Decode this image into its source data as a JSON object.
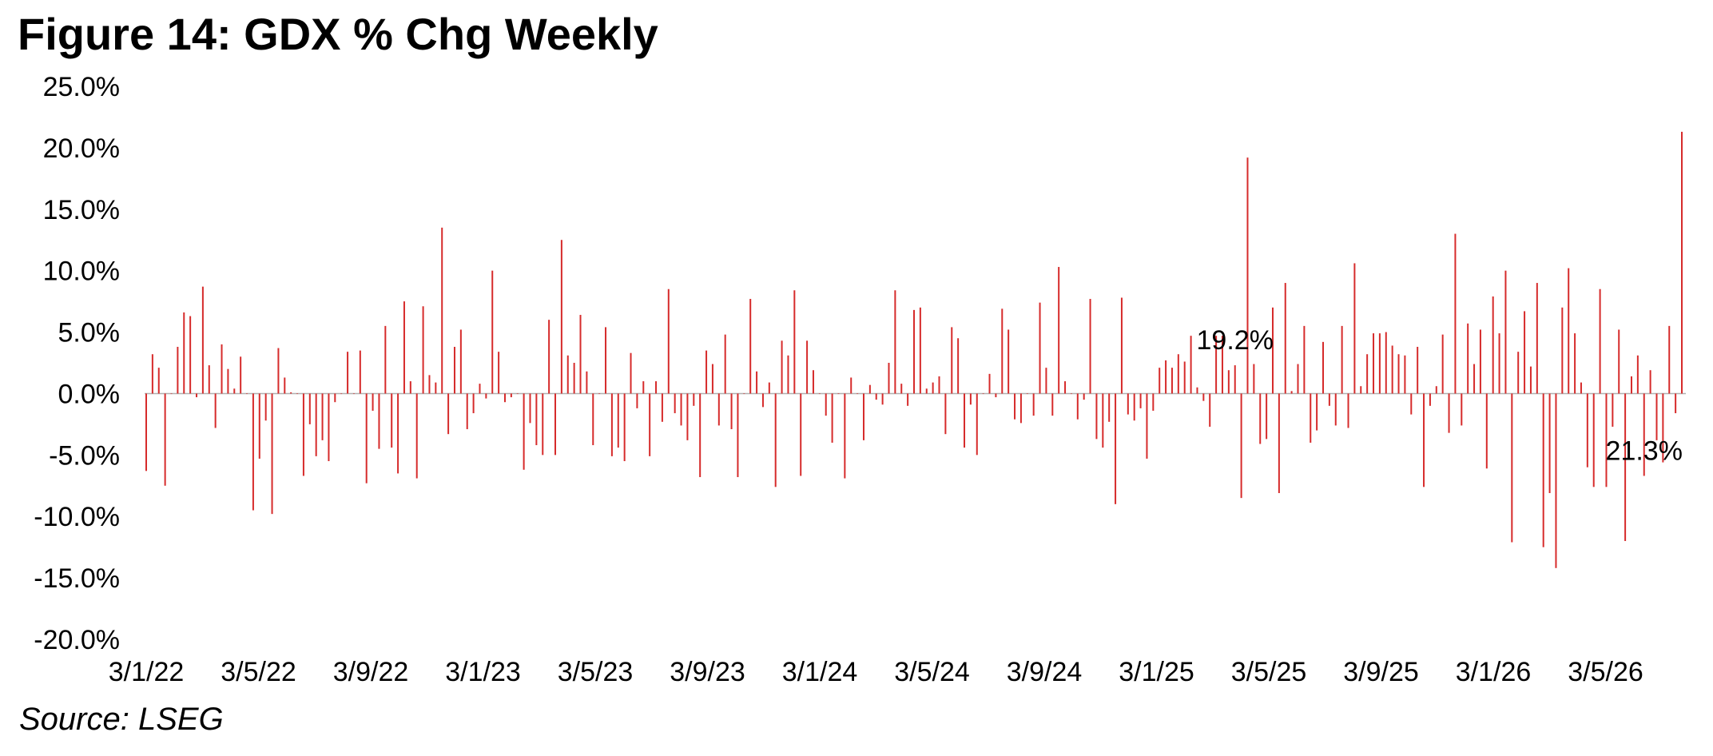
{
  "figure": {
    "title": "Figure 14: GDX % Chg Weekly",
    "source": "Source: LSEG",
    "colors": {
      "bar": "#d62b2b",
      "axis": "#b0b0b0",
      "text": "#000000"
    }
  },
  "chart_data": {
    "type": "bar",
    "series": [
      {
        "values": [
          -6.3,
          3.2,
          2.1,
          -7.5,
          0,
          3.8,
          6.6,
          6.3,
          -0.3,
          8.7,
          2.3,
          -2.8,
          4.0,
          2.0,
          0.4,
          3.0,
          0,
          -9.5,
          -5.3,
          -2.2,
          -9.8,
          3.7,
          1.3,
          0.1,
          0,
          -6.7,
          -2.5,
          -5.1,
          -3.8,
          -5.5,
          -0.7,
          0,
          3.4,
          0,
          3.5,
          -7.3,
          -1.4,
          -4.5,
          5.5,
          -4.4,
          -6.5,
          7.5,
          1.0,
          -6.9,
          7.1,
          1.5,
          0.9,
          13.5,
          -3.3,
          3.8,
          5.2,
          -2.9,
          -1.6,
          0.8,
          -0.4,
          10.0,
          3.4,
          -0.7,
          -0.3,
          0,
          -6.2,
          -2.4,
          -4.2,
          -5.0,
          6.0,
          -5.0,
          12.5,
          3.1,
          2.5,
          6.4,
          1.8,
          -4.2,
          0,
          5.4,
          -5.1,
          -4.4,
          -5.5,
          3.3,
          -1.2,
          1.0,
          -5.1,
          1.0,
          -2.3,
          8.5,
          -1.6,
          -2.6,
          -3.8,
          -1.0,
          -6.8,
          3.5,
          2.4,
          -2.6,
          4.8,
          -2.9,
          -6.8,
          0,
          7.7,
          1.8,
          -1.1,
          0.9,
          -7.6,
          4.3,
          3.1,
          8.4,
          -6.7,
          4.3,
          1.9,
          0,
          -1.8,
          -4.0,
          0,
          -6.9,
          1.3,
          0,
          -3.8,
          0.7,
          -0.5,
          -0.9,
          2.5,
          8.4,
          0.8,
          -1.0,
          6.8,
          7.0,
          0.4,
          0.9,
          1.4,
          -3.3,
          5.4,
          4.5,
          -4.4,
          -0.9,
          -5.0,
          0,
          1.6,
          -0.3,
          6.9,
          5.2,
          -2.1,
          -2.4,
          0,
          -1.8,
          7.4,
          2.1,
          -1.8,
          10.3,
          1.0,
          0,
          -2.1,
          -0.5,
          7.7,
          -3.7,
          -4.4,
          -2.3,
          -9.0,
          7.8,
          -1.7,
          -2.2,
          -1.2,
          -5.3,
          -1.4,
          2.1,
          2.7,
          2.1,
          3.2,
          2.6,
          4.7,
          0.5,
          -0.6,
          -2.7,
          4.7,
          4.7,
          1.9,
          2.3,
          -8.5,
          19.2,
          2.4,
          -4.1,
          -3.7,
          7.0,
          -8.1,
          9.0,
          0.2,
          2.4,
          5.5,
          -4.0,
          -3.0,
          4.2,
          -1.0,
          -2.6,
          5.5,
          -2.8,
          10.6,
          0.6,
          3.2,
          4.9,
          4.9,
          5.0,
          3.9,
          3.2,
          3.1,
          -1.7,
          3.8,
          -7.6,
          -1.0,
          0.6,
          4.8,
          -3.2,
          13.0,
          -2.6,
          5.7,
          2.4,
          5.2,
          -6.1,
          7.9,
          4.9,
          10.0,
          -12.1,
          3.4,
          6.7,
          2.2,
          9.0,
          -12.5,
          -8.1,
          -14.2,
          7.0,
          10.2,
          4.9,
          0.9,
          -6.0,
          -7.6,
          8.5,
          -7.6,
          -2.7,
          5.2,
          -12.0,
          1.4,
          3.1,
          -6.7,
          1.9,
          -3.8,
          -5.6,
          5.5,
          -1.6,
          21.3
        ]
      }
    ],
    "x_tick_labels": [
      "3/1/22",
      "3/5/22",
      "3/9/22",
      "3/1/23",
      "3/5/23",
      "3/9/23",
      "3/1/24",
      "3/5/24",
      "3/9/24",
      "3/1/25",
      "3/5/25",
      "3/9/25",
      "3/1/26",
      "3/5/26"
    ],
    "y_tick_labels": [
      "25.0%",
      "20.0%",
      "15.0%",
      "10.0%",
      "5.0%",
      "0.0%",
      "-5.0%",
      "-10.0%",
      "-15.0%",
      "-20.0%"
    ],
    "ylim": [
      -20,
      25
    ],
    "annotations": [
      {
        "text": "19.2%",
        "index": 173
      },
      {
        "text": "21.3%",
        "index": 238
      }
    ],
    "grid": false,
    "legend": "none"
  }
}
